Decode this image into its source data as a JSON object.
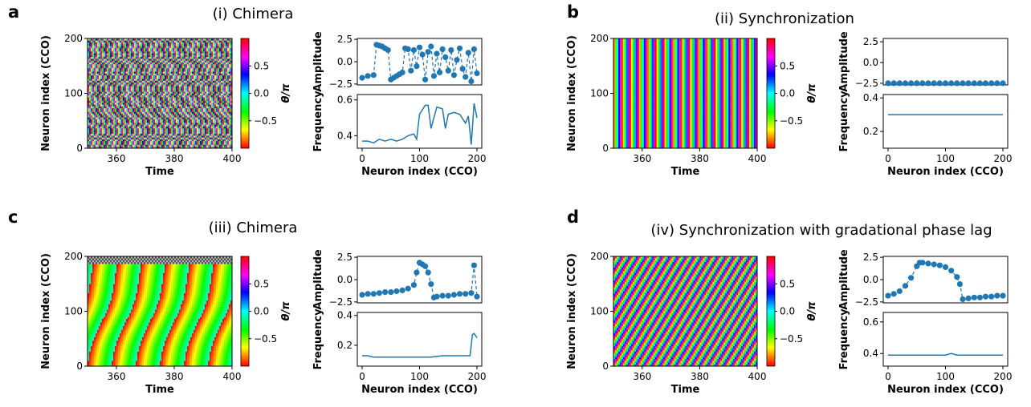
{
  "chart_data": [
    {
      "panel": "a",
      "title": "(i) Chimera",
      "heatmap": {
        "type": "heatmap",
        "xlabel": "Time",
        "ylabel": "Neuron index (CCO)",
        "xlim": [
          350,
          400
        ],
        "ylim": [
          0,
          200
        ],
        "xticks": [
          "360",
          "380",
          "400"
        ],
        "yticks": [
          "0",
          "100",
          "200"
        ],
        "colorbar": {
          "label": "θ/π",
          "ticks": [
            "0.5",
            "0.0",
            "−0.5"
          ]
        }
      },
      "amplitude": {
        "type": "scatter",
        "ylabel": "Amplitude",
        "ylim": [
          -2.6,
          2.6
        ],
        "yticks": [
          "2.5",
          "0.0",
          "−2.5"
        ],
        "x": [
          0,
          10,
          20,
          25,
          30,
          35,
          40,
          45,
          50,
          55,
          60,
          65,
          70,
          75,
          80,
          85,
          90,
          95,
          100,
          105,
          110,
          115,
          120,
          125,
          130,
          135,
          140,
          145,
          150,
          155,
          160,
          165,
          170,
          175,
          180,
          185,
          190,
          195,
          200
        ],
        "y": [
          -1.8,
          -1.6,
          -1.5,
          1.9,
          1.8,
          1.7,
          1.5,
          1.3,
          -2.0,
          -1.8,
          -1.6,
          -1.4,
          -1.2,
          1.5,
          1.4,
          -1.0,
          1.3,
          -0.5,
          1.6,
          0.8,
          -2.0,
          1.1,
          1.7,
          -1.6,
          0.9,
          -1.2,
          1.4,
          0.5,
          -1.0,
          1.3,
          -1.5,
          0.2,
          1.5,
          -0.8,
          -1.7,
          1.0,
          -2.2,
          1.4,
          -1.3
        ]
      },
      "frequency": {
        "type": "line",
        "xlabel": "Neuron index (CCO)",
        "ylabel": "Frequency",
        "ylim": [
          0.33,
          0.63
        ],
        "xticks": [
          "0",
          "100",
          "200"
        ],
        "yticks": [
          "0.4",
          "0.6"
        ],
        "x": [
          0,
          10,
          20,
          30,
          40,
          50,
          60,
          70,
          80,
          90,
          95,
          100,
          110,
          115,
          120,
          130,
          140,
          145,
          150,
          160,
          170,
          180,
          185,
          190,
          195,
          200
        ],
        "y": [
          0.37,
          0.37,
          0.36,
          0.38,
          0.37,
          0.38,
          0.37,
          0.38,
          0.4,
          0.41,
          0.38,
          0.52,
          0.57,
          0.57,
          0.44,
          0.56,
          0.55,
          0.44,
          0.52,
          0.53,
          0.52,
          0.47,
          0.51,
          0.35,
          0.58,
          0.5
        ]
      }
    },
    {
      "panel": "b",
      "title": "(ii) Synchronization",
      "heatmap": {
        "type": "heatmap",
        "xlabel": "Time",
        "ylabel": "Neuron index (CCO)",
        "xlim": [
          350,
          400
        ],
        "ylim": [
          0,
          200
        ],
        "xticks": [
          "360",
          "380",
          "400"
        ],
        "yticks": [
          "0",
          "100",
          "200"
        ],
        "colorbar": {
          "label": "θ/π",
          "ticks": [
            "0.5",
            "0.0",
            "−0.5"
          ]
        }
      },
      "amplitude": {
        "type": "scatter",
        "ylabel": "Amplitude",
        "ylim": [
          -2.7,
          2.9
        ],
        "yticks": [
          "2.5",
          "0.0",
          "−2.5"
        ],
        "x": [
          0,
          10,
          20,
          30,
          40,
          50,
          60,
          70,
          80,
          90,
          100,
          110,
          120,
          130,
          140,
          150,
          160,
          170,
          180,
          190,
          200
        ],
        "y": [
          -2.5,
          -2.5,
          -2.5,
          -2.5,
          -2.5,
          -2.5,
          -2.5,
          -2.5,
          -2.5,
          -2.5,
          -2.5,
          -2.5,
          -2.5,
          -2.5,
          -2.5,
          -2.5,
          -2.5,
          -2.5,
          -2.5,
          -2.5,
          -2.5
        ]
      },
      "frequency": {
        "type": "line",
        "xlabel": "Neuron index (CCO)",
        "ylabel": "Frequency",
        "ylim": [
          0.1,
          0.42
        ],
        "xticks": [
          "0",
          "100",
          "200"
        ],
        "yticks": [
          "0.2",
          "0.4"
        ],
        "x": [
          0,
          200
        ],
        "y": [
          0.3,
          0.3
        ]
      }
    },
    {
      "panel": "c",
      "title": "(iii) Chimera",
      "heatmap": {
        "type": "heatmap",
        "xlabel": "Time",
        "ylabel": "Neuron index (CCO)",
        "xlim": [
          350,
          400
        ],
        "ylim": [
          0,
          200
        ],
        "xticks": [
          "360",
          "380",
          "400"
        ],
        "yticks": [
          "0",
          "100",
          "200"
        ],
        "colorbar": {
          "label": "θ/π",
          "ticks": [
            "0.5",
            "0.0",
            "−0.5"
          ]
        }
      },
      "amplitude": {
        "type": "scatter",
        "ylabel": "Amplitude",
        "ylim": [
          -2.6,
          2.6
        ],
        "yticks": [
          "2.5",
          "0.0",
          "−2.5"
        ],
        "x": [
          0,
          10,
          20,
          30,
          40,
          50,
          60,
          70,
          80,
          90,
          95,
          100,
          105,
          110,
          115,
          120,
          125,
          130,
          140,
          150,
          160,
          170,
          180,
          190,
          195,
          200
        ],
        "y": [
          -1.7,
          -1.6,
          -1.6,
          -1.5,
          -1.4,
          -1.4,
          -1.3,
          -1.2,
          -1.0,
          -0.6,
          0.8,
          1.9,
          1.7,
          1.5,
          0.8,
          -0.5,
          -2.0,
          -1.9,
          -1.8,
          -1.8,
          -1.7,
          -1.6,
          -1.6,
          -1.5,
          1.6,
          -1.9
        ]
      },
      "frequency": {
        "type": "line",
        "xlabel": "Neuron index (CCO)",
        "ylabel": "Frequency",
        "ylim": [
          0.06,
          0.42
        ],
        "xticks": [
          "0",
          "100",
          "200"
        ],
        "yticks": [
          "0.2",
          "0.4"
        ],
        "x": [
          0,
          10,
          20,
          40,
          60,
          80,
          100,
          120,
          140,
          160,
          180,
          188,
          192,
          195,
          200
        ],
        "y": [
          0.13,
          0.13,
          0.12,
          0.12,
          0.12,
          0.12,
          0.12,
          0.12,
          0.13,
          0.13,
          0.13,
          0.13,
          0.27,
          0.28,
          0.25
        ]
      }
    },
    {
      "panel": "d",
      "title": "(iv) Synchronization with gradational phase lag",
      "heatmap": {
        "type": "heatmap",
        "xlabel": "Time",
        "ylabel": "Neuron index (CCO)",
        "xlim": [
          350,
          400
        ],
        "ylim": [
          0,
          200
        ],
        "xticks": [
          "360",
          "380",
          "400"
        ],
        "yticks": [
          "0",
          "100",
          "200"
        ],
        "colorbar": {
          "label": "θ/π",
          "ticks": [
            "0.5",
            "0.0",
            "−0.5"
          ]
        }
      },
      "amplitude": {
        "type": "scatter",
        "ylabel": "Amplitude",
        "ylim": [
          -2.6,
          2.6
        ],
        "yticks": [
          "2.5",
          "0.0",
          "−2.5"
        ],
        "x": [
          0,
          10,
          20,
          30,
          40,
          50,
          55,
          60,
          70,
          80,
          90,
          100,
          110,
          120,
          125,
          130,
          140,
          150,
          160,
          170,
          180,
          190,
          200
        ],
        "y": [
          -1.8,
          -1.6,
          -1.3,
          -0.7,
          0.2,
          1.5,
          1.9,
          1.9,
          1.8,
          1.7,
          1.6,
          1.4,
          1.0,
          0.3,
          -0.5,
          -2.2,
          -2.1,
          -2.0,
          -2.0,
          -1.9,
          -1.9,
          -1.8,
          -1.8
        ]
      },
      "frequency": {
        "type": "line",
        "xlabel": "Neuron index (CCO)",
        "ylabel": "Frequency",
        "ylim": [
          0.32,
          0.66
        ],
        "xticks": [
          "0",
          "100",
          "200"
        ],
        "yticks": [
          "0.4",
          "0.6"
        ],
        "x": [
          0,
          20,
          40,
          60,
          80,
          100,
          110,
          120,
          140,
          160,
          180,
          200
        ],
        "y": [
          0.39,
          0.39,
          0.39,
          0.39,
          0.39,
          0.39,
          0.4,
          0.39,
          0.39,
          0.39,
          0.39,
          0.39
        ]
      }
    }
  ]
}
